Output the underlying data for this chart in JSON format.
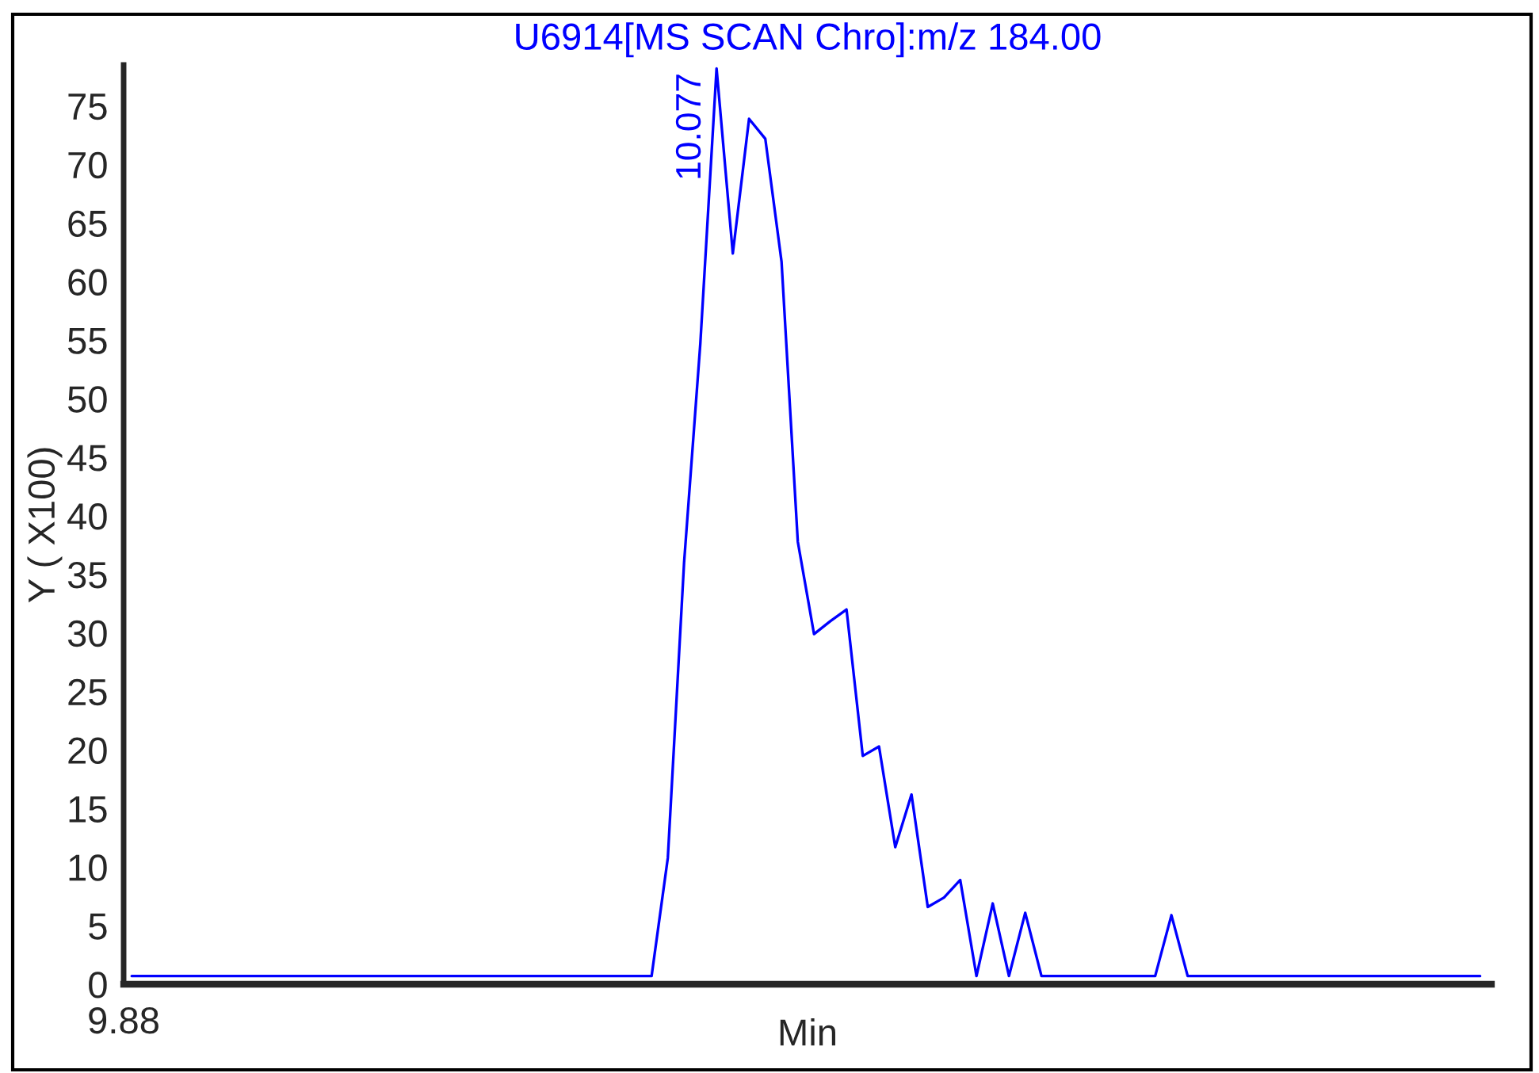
{
  "chart_data": {
    "type": "line",
    "title": "U6914[MS SCAN Chro]:m/z 184.00",
    "xlabel": "Min",
    "ylabel": "Y ( X100)",
    "categories": [
      null,
      null,
      null,
      null,
      null,
      null,
      null,
      null,
      null,
      null,
      null,
      null,
      null,
      null,
      null,
      null,
      null,
      null,
      null,
      null,
      null,
      null,
      null,
      null,
      null,
      null,
      null,
      null,
      null,
      null,
      null,
      null,
      null,
      null,
      null,
      null,
      null,
      null,
      null,
      null,
      null,
      null,
      null,
      null,
      null,
      null,
      null,
      null,
      null,
      null,
      null,
      null,
      null,
      null,
      null,
      null,
      null,
      null,
      null,
      null,
      null,
      null,
      null,
      null,
      null,
      null,
      null,
      null,
      null,
      null,
      null,
      null,
      null,
      null,
      null,
      null,
      null,
      null,
      null,
      null,
      null,
      null,
      null,
      null
    ],
    "series": [
      {
        "color": "#0000ff",
        "values": [
          0.7,
          0.7,
          0.7,
          0.7,
          0.7,
          0.7,
          0.7,
          0.7,
          0.7,
          0.7,
          0.7,
          0.7,
          0.7,
          0.7,
          0.7,
          0.7,
          0.7,
          0.7,
          0.7,
          0.7,
          0.7,
          0.7,
          0.7,
          0.7,
          0.7,
          0.7,
          0.7,
          0.7,
          0.7,
          0.7,
          0.7,
          0.7,
          0.7,
          10.8,
          36.0,
          54.7,
          78.2,
          62.4,
          73.9,
          72.2,
          61.7,
          37.8,
          29.9,
          31.0,
          32.0,
          19.5,
          20.3,
          11.7,
          16.2,
          6.6,
          7.4,
          8.9,
          0.7,
          6.9,
          0.7,
          6.1,
          0.7,
          0.7,
          0.7,
          0.7,
          0.7,
          0.7,
          0.7,
          0.7,
          5.9,
          0.7,
          0.7,
          0.7,
          0.7,
          0.7,
          0.7,
          0.7,
          0.7,
          0.7,
          0.7,
          0.7,
          0.7,
          0.7,
          0.7,
          0.7,
          0.7,
          0.7,
          0.7,
          0.7
        ]
      }
    ],
    "annotations": [
      "10.077",
      "9.88"
    ],
    "ylim": [
      0,
      78.5
    ],
    "yticks": [
      0,
      5,
      10,
      15,
      20,
      25,
      30,
      35,
      40,
      45,
      50,
      55,
      60,
      65,
      70,
      75
    ],
    "grid": false,
    "legend": false
  }
}
